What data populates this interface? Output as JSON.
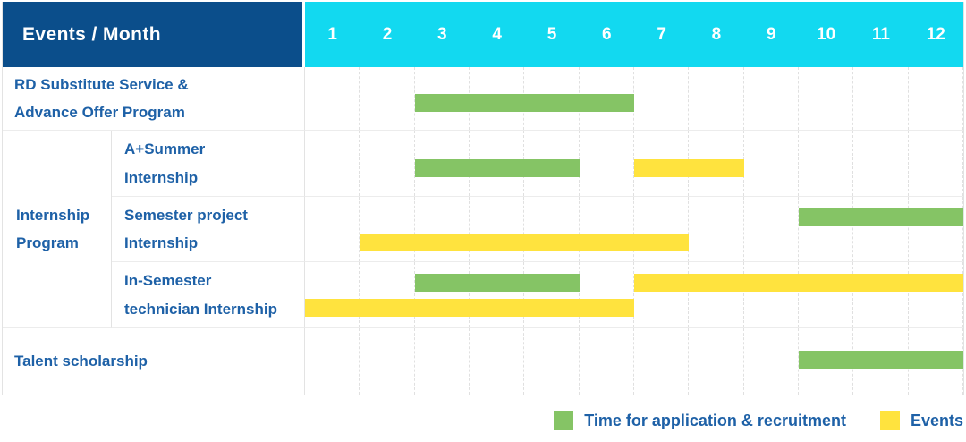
{
  "header": {
    "title": "Events / Month",
    "months": [
      "1",
      "2",
      "3",
      "4",
      "5",
      "6",
      "7",
      "8",
      "9",
      "10",
      "11",
      "12"
    ]
  },
  "gantt": {
    "group": {
      "label": "Internship Program\n"
    },
    "rows": [
      {
        "label": "RD Substitute Service &\nAdvance Offer Program",
        "bars": [
          {
            "color": "green",
            "start": 3,
            "end": 6,
            "lane": "mid"
          }
        ]
      },
      {
        "label": "A+Summer\nInternship",
        "bars": [
          {
            "color": "green",
            "start": 3,
            "end": 5,
            "lane": "mid"
          },
          {
            "color": "yellow",
            "start": 7,
            "end": 8,
            "lane": "mid"
          }
        ]
      },
      {
        "label": "Semester project\nInternship",
        "bars": [
          {
            "color": "green",
            "start": 10,
            "end": 12,
            "lane": "high"
          },
          {
            "color": "yellow",
            "start": 2,
            "end": 7,
            "lane": "low"
          }
        ]
      },
      {
        "label": "In-Semester\ntechnician Internship",
        "bars": [
          {
            "color": "green",
            "start": 3,
            "end": 5,
            "lane": "high"
          },
          {
            "color": "yellow",
            "start": 7,
            "end": 12,
            "lane": "high"
          },
          {
            "color": "yellow",
            "start": 1,
            "end": 6,
            "lane": "low"
          }
        ]
      },
      {
        "label": "Talent scholarship",
        "bars": [
          {
            "color": "green",
            "start": 10,
            "end": 12,
            "lane": "center"
          }
        ]
      }
    ]
  },
  "legend": {
    "items": [
      {
        "color": "green",
        "label": "Time for application & recruitment"
      },
      {
        "color": "yellow",
        "label": "Events"
      }
    ]
  },
  "colors": {
    "header_blue": "#0b4e8b",
    "header_cyan": "#12d9f0",
    "bar_green": "#85c465",
    "bar_yellow": "#ffe33e",
    "label_text": "#1e61a7",
    "grid_line": "#e0e0e0"
  },
  "chart_data": {
    "type": "gantt",
    "title": "Events / Month",
    "x_axis": {
      "label": "Month",
      "ticks": [
        1,
        2,
        3,
        4,
        5,
        6,
        7,
        8,
        9,
        10,
        11,
        12
      ],
      "range": [
        1,
        12
      ]
    },
    "grid": true,
    "legend_position": "bottom-right",
    "series_legend": [
      "Time for application & recruitment",
      "Events"
    ],
    "rows": [
      {
        "category": "RD Substitute Service & Advance Offer Program",
        "group": null,
        "spans": [
          {
            "series": "Time for application & recruitment",
            "start_month": 3,
            "end_month": 6
          }
        ]
      },
      {
        "category": "A+Summer Internship",
        "group": "Internship Program",
        "spans": [
          {
            "series": "Time for application & recruitment",
            "start_month": 3,
            "end_month": 5
          },
          {
            "series": "Events",
            "start_month": 7,
            "end_month": 8
          }
        ]
      },
      {
        "category": "Semester project Internship",
        "group": "Internship Program",
        "spans": [
          {
            "series": "Time for application & recruitment",
            "start_month": 10,
            "end_month": 12
          },
          {
            "series": "Events",
            "start_month": 2,
            "end_month": 7
          }
        ]
      },
      {
        "category": "In-Semester technician Internship",
        "group": "Internship Program",
        "spans": [
          {
            "series": "Time for application & recruitment",
            "start_month": 3,
            "end_month": 5
          },
          {
            "series": "Events",
            "start_month": 7,
            "end_month": 12
          },
          {
            "series": "Events",
            "start_month": 1,
            "end_month": 6
          }
        ]
      },
      {
        "category": "Talent scholarship",
        "group": null,
        "spans": [
          {
            "series": "Time for application & recruitment",
            "start_month": 10,
            "end_month": 12
          }
        ]
      }
    ]
  }
}
